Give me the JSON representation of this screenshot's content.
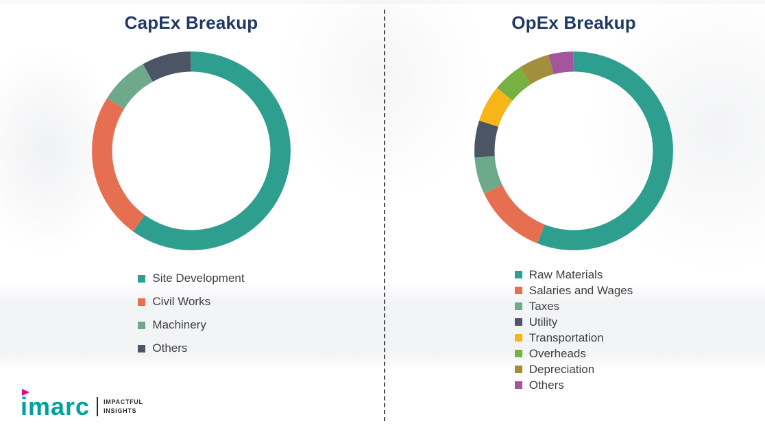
{
  "chart_data": [
    {
      "type": "pie",
      "donut": true,
      "title": "CapEx Breakup",
      "labels": [
        "Site Development",
        "Civil Works",
        "Machinery",
        "Others"
      ],
      "values": [
        60,
        24,
        8,
        8
      ],
      "colors": [
        "#2E9E8F",
        "#E76F51",
        "#6FA98C",
        "#4C5566"
      ],
      "units": "percent (estimated from arc angles)",
      "start": "top",
      "direction": "clockwise",
      "legend_position": "bottom"
    },
    {
      "type": "pie",
      "donut": true,
      "title": "OpEx Breakup",
      "labels": [
        "Raw Materials",
        "Salaries and Wages",
        "Taxes",
        "Utility",
        "Transportation",
        "Overheads",
        "Depreciation",
        "Others"
      ],
      "values": [
        56,
        12,
        6,
        6,
        6,
        5,
        5,
        4
      ],
      "colors": [
        "#2E9E8F",
        "#E76F51",
        "#6FA98C",
        "#4C5566",
        "#F7B617",
        "#77B043",
        "#A28E3C",
        "#A4559D"
      ],
      "units": "percent (estimated from arc angles)",
      "start": "top",
      "direction": "clockwise",
      "legend_position": "bottom"
    }
  ],
  "style": {
    "title_color": "#1F3864",
    "legend_text_color": "#404040",
    "divider_color": "#4d4d4d"
  },
  "logo": {
    "brand": "imarc",
    "tagline_line1": "IMPACTFUL",
    "tagline_line2": "INSIGHTS",
    "brand_color": "#00A29E",
    "accent_color": "#EC008C"
  }
}
